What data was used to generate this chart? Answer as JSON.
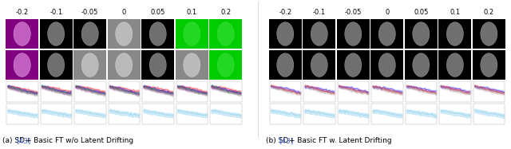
{
  "figsize": [
    6.4,
    1.87
  ],
  "dpi": 100,
  "background_color": "#ffffff",
  "caption_left": "(a) SD [43] + Basic FT w/o Latent Drifting",
  "caption_right": "(b) SD [43] + Basic FT w. Latent Drifting",
  "caption_ref_color": "#4169e1",
  "tick_labels": [
    "-0.2",
    "-0.1",
    "-0.05",
    "0",
    "0.05",
    "0.1",
    "0.2"
  ],
  "left_panel_colors": {
    "row0": [
      "#800080",
      "#000000",
      "#000000",
      "#888888",
      "#000000",
      "#00cc00",
      "#00cc00"
    ],
    "row1": [
      "#800080",
      "#000000",
      "#888888",
      "#888888",
      "#000000",
      "#888888",
      "#00cc00"
    ]
  },
  "right_panel_colors": {
    "row0": [
      "#000000",
      "#000000",
      "#000000",
      "#000000",
      "#000000",
      "#000000",
      "#000000"
    ],
    "row1": [
      "#000000",
      "#000000",
      "#000000",
      "#000000",
      "#000000",
      "#000000",
      "#000000"
    ]
  },
  "line_colors_top_left": [
    "#ff0000",
    "#0000ff",
    "#00aa00",
    "#aa00aa",
    "#888888"
  ],
  "line_colors_top_right": [
    "#0000ff",
    "#ff0000",
    "#888888"
  ],
  "line_color_bottom": "#87ceeb",
  "font_size_caption": 6.5,
  "font_size_ticks": 6.0
}
